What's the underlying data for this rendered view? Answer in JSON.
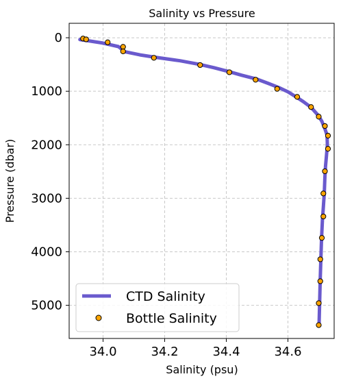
{
  "chart_data": {
    "type": "line",
    "title": "Salinity vs Pressure",
    "xlabel": "Salinity (psu)",
    "ylabel": "Pressure (dbar)",
    "xlim": [
      33.89,
      34.75
    ],
    "ylim": [
      5620,
      -270
    ],
    "y_inverted": true,
    "grid": true,
    "legend_position": "lower-left",
    "x_ticks": [
      34.0,
      34.2,
      34.4,
      34.6
    ],
    "x_tick_labels": [
      "34.0",
      "34.2",
      "34.4",
      "34.6"
    ],
    "y_ticks": [
      0,
      1000,
      2000,
      3000,
      4000,
      5000
    ],
    "y_tick_labels": [
      "0",
      "1000",
      "2000",
      "3000",
      "4000",
      "5000"
    ],
    "series": [
      {
        "name": "CTD Salinity",
        "kind": "line",
        "color": "#6a5acd",
        "points": [
          [
            33.925,
            35
          ],
          [
            33.95,
            55
          ],
          [
            34.0,
            100
          ],
          [
            34.05,
            165
          ],
          [
            34.07,
            260
          ],
          [
            34.12,
            320
          ],
          [
            34.17,
            365
          ],
          [
            34.25,
            430
          ],
          [
            34.31,
            495
          ],
          [
            34.36,
            560
          ],
          [
            34.41,
            635
          ],
          [
            34.45,
            700
          ],
          [
            34.5,
            775
          ],
          [
            34.535,
            850
          ],
          [
            34.57,
            930
          ],
          [
            34.6,
            1010
          ],
          [
            34.625,
            1100
          ],
          [
            34.65,
            1195
          ],
          [
            34.675,
            1300
          ],
          [
            34.695,
            1430
          ],
          [
            34.71,
            1560
          ],
          [
            34.72,
            1700
          ],
          [
            34.727,
            1820
          ],
          [
            34.728,
            2000
          ],
          [
            34.725,
            2200
          ],
          [
            34.722,
            2400
          ],
          [
            34.72,
            2600
          ],
          [
            34.718,
            2900
          ],
          [
            34.715,
            3150
          ],
          [
            34.712,
            3400
          ],
          [
            34.709,
            3750
          ],
          [
            34.707,
            4100
          ],
          [
            34.705,
            4500
          ],
          [
            34.703,
            4900
          ],
          [
            34.701,
            5350
          ]
        ]
      },
      {
        "name": "Bottle Salinity",
        "kind": "scatter",
        "color": "#ffa500",
        "edge_color": "#000000",
        "points": [
          [
            33.935,
            15
          ],
          [
            33.945,
            30
          ],
          [
            34.015,
            85
          ],
          [
            34.065,
            170
          ],
          [
            34.065,
            255
          ],
          [
            34.165,
            375
          ],
          [
            34.315,
            510
          ],
          [
            34.41,
            645
          ],
          [
            34.495,
            785
          ],
          [
            34.565,
            955
          ],
          [
            34.63,
            1105
          ],
          [
            34.675,
            1295
          ],
          [
            34.7,
            1475
          ],
          [
            34.72,
            1650
          ],
          [
            34.73,
            1830
          ],
          [
            34.73,
            2075
          ],
          [
            34.72,
            2495
          ],
          [
            34.715,
            2910
          ],
          [
            34.715,
            3340
          ],
          [
            34.71,
            3740
          ],
          [
            34.705,
            4140
          ],
          [
            34.705,
            4550
          ],
          [
            34.7,
            4960
          ],
          [
            34.7,
            5370
          ]
        ]
      }
    ]
  }
}
